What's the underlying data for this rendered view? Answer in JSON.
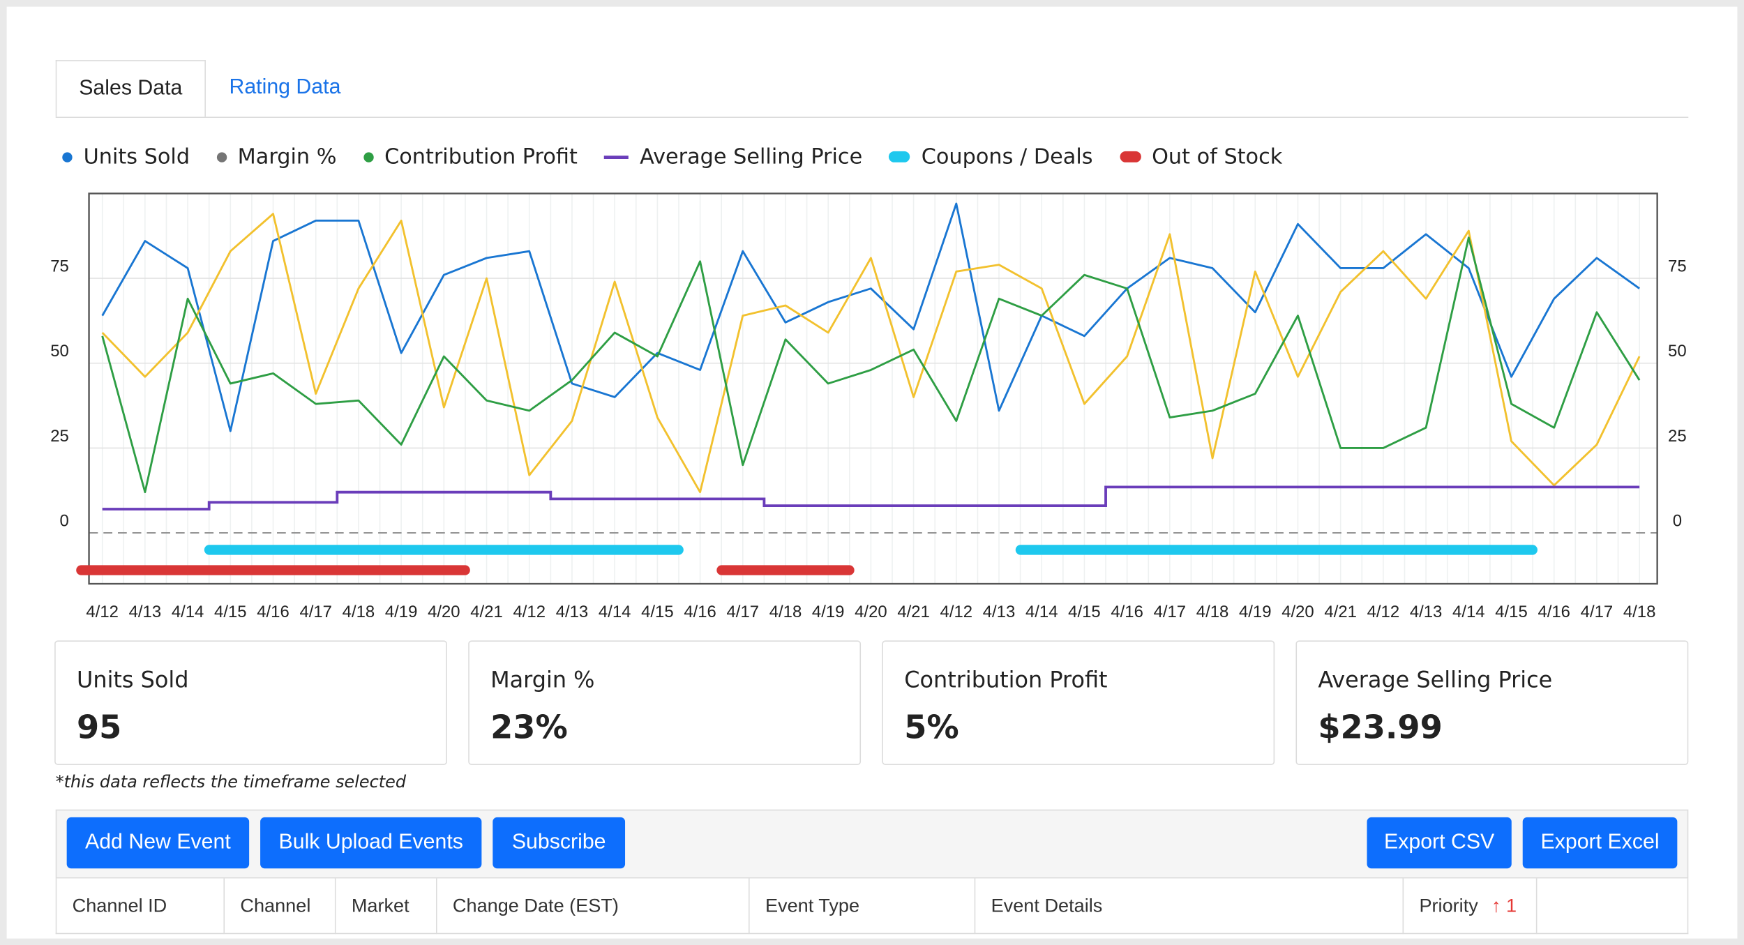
{
  "tabs": [
    "Sales Data",
    "Rating Data"
  ],
  "chart_data": {
    "type": "line",
    "categories": [
      "4/12",
      "4/13",
      "4/14",
      "4/15",
      "4/16",
      "4/17",
      "4/18",
      "4/19",
      "4/20",
      "4/21",
      "4/12",
      "4/13",
      "4/14",
      "4/15",
      "4/16",
      "4/17",
      "4/18",
      "4/19",
      "4/20",
      "4/21",
      "4/12",
      "4/13",
      "4/14",
      "4/15",
      "4/16",
      "4/17",
      "4/18",
      "4/19",
      "4/20",
      "4/21",
      "4/12",
      "4/13",
      "4/14",
      "4/15",
      "4/16",
      "4/17",
      "4/18"
    ],
    "ylim": [
      -15,
      100
    ],
    "yticks": [
      0,
      25,
      50,
      75
    ],
    "y2lim": [
      -15,
      100
    ],
    "y2ticks": [
      0,
      25,
      50,
      75
    ],
    "grid": true,
    "series": [
      {
        "name": "Units Sold",
        "color": "#1976d2",
        "marker": "dot",
        "style": "line",
        "values": [
          64,
          86,
          78,
          30,
          86,
          92,
          92,
          53,
          76,
          81,
          83,
          44,
          40,
          53,
          48,
          83,
          62,
          68,
          72,
          60,
          97,
          36,
          64,
          58,
          72,
          81,
          78,
          65,
          91,
          78,
          78,
          88,
          78,
          46,
          69,
          81,
          72
        ]
      },
      {
        "name": "Margin %",
        "color": "#757575",
        "line_color": "#f2c12e",
        "marker": "dot",
        "style": "line",
        "values": [
          59,
          46,
          59,
          83,
          94,
          41,
          72,
          92,
          37,
          75,
          17,
          33,
          74,
          34,
          12,
          64,
          67,
          59,
          81,
          40,
          77,
          79,
          72,
          38,
          52,
          88,
          22,
          77,
          46,
          71,
          83,
          69,
          89,
          27,
          14,
          26,
          52
        ]
      },
      {
        "name": "Contribution Profit",
        "color": "#2e9e44",
        "marker": "dot",
        "style": "line",
        "values": [
          58,
          12,
          69,
          44,
          47,
          38,
          39,
          26,
          52,
          39,
          36,
          45,
          59,
          52,
          80,
          20,
          57,
          44,
          48,
          54,
          33,
          69,
          64,
          76,
          72,
          34,
          36,
          41,
          64,
          25,
          25,
          31,
          87,
          38,
          31,
          65,
          45
        ]
      },
      {
        "name": "Average Selling Price",
        "color": "#6a3dba",
        "marker": "line",
        "style": "step",
        "values": [
          7,
          7,
          7,
          9,
          9,
          9,
          12,
          12,
          12,
          12,
          12,
          10,
          10,
          10,
          10,
          10,
          8,
          8,
          8,
          8,
          8,
          8,
          8,
          8,
          13.5,
          13.5,
          13.5,
          13.5,
          13.5,
          13.5,
          13.5,
          13.5,
          13.5,
          13.5,
          13.5,
          13.5,
          13.5
        ]
      },
      {
        "name": "Coupons / Deals",
        "color": "#1ec8ee",
        "marker": "bar",
        "style": "range",
        "values": [
          null,
          null,
          null,
          -5,
          -5,
          -5,
          -5,
          -5,
          -5,
          -5,
          -5,
          -5,
          -5,
          -5,
          null,
          null,
          null,
          null,
          null,
          null,
          null,
          null,
          -5,
          -5,
          -5,
          -5,
          -5,
          -5,
          -5,
          -5,
          -5,
          -5,
          -5,
          -5,
          null,
          null,
          null
        ]
      },
      {
        "name": "Out of Stock",
        "color": "#d93636",
        "marker": "bar",
        "style": "range",
        "values": [
          -11,
          -11,
          -11,
          -11,
          -11,
          -11,
          -11,
          -11,
          -11,
          null,
          null,
          null,
          null,
          null,
          null,
          -11,
          -11,
          -11,
          null,
          null,
          null,
          null,
          null,
          null,
          null,
          null,
          null,
          null,
          null,
          null,
          null,
          null,
          null,
          null,
          null,
          null,
          null
        ]
      }
    ]
  },
  "cards": [
    {
      "title": "Units Sold",
      "value": "95"
    },
    {
      "title": "Margin %",
      "value": "23%"
    },
    {
      "title": "Contribution Profit",
      "value": "5%"
    },
    {
      "title": "Average Selling Price",
      "value": "$23.99"
    }
  ],
  "note": "*this data reflects the timeframe selected",
  "buttons_left": [
    "Add New Event",
    "Bulk Upload Events",
    "Subscribe"
  ],
  "buttons_right": [
    "Export CSV",
    "Export Excel"
  ],
  "table": {
    "columns": [
      "Channel ID",
      "Channel",
      "Market",
      "Change Date (EST)",
      "Event Type",
      "Event Details",
      "Priority",
      ""
    ],
    "sort": "↑ 1"
  }
}
